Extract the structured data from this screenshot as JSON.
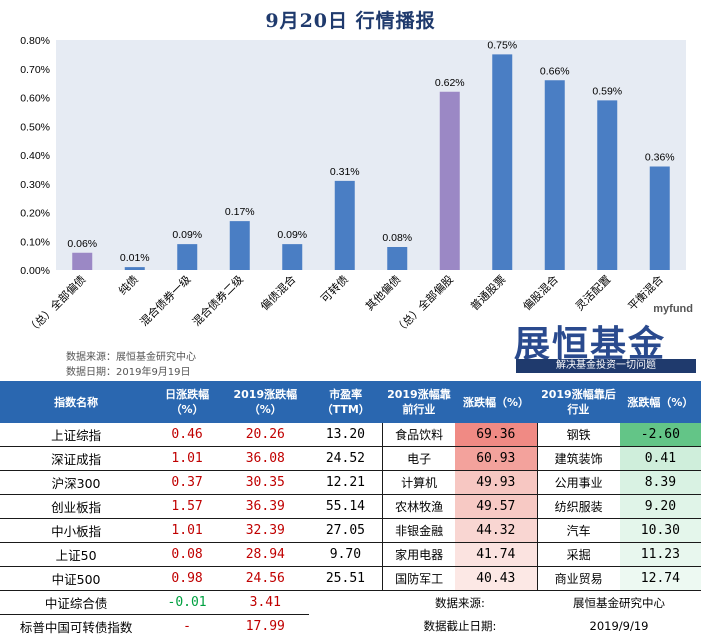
{
  "title": "9月20日  行情播报",
  "chart_data": {
    "type": "bar",
    "categories": [
      "（总）全部偏债",
      "纯债",
      "混合债券一级",
      "混合债券二级",
      "偏债混合",
      "可转债",
      "其他偏债",
      "（总）全部偏股",
      "普通股票",
      "偏股混合",
      "灵活配置",
      "平衡混合"
    ],
    "values": [
      0.06,
      0.01,
      0.09,
      0.17,
      0.09,
      0.31,
      0.08,
      0.62,
      0.75,
      0.66,
      0.59,
      0.36
    ],
    "data_labels": [
      "0.06%",
      "0.01%",
      "0.09%",
      "0.17%",
      "0.09%",
      "0.31%",
      "0.08%",
      "0.62%",
      "0.75%",
      "0.66%",
      "0.59%",
      "0.36%"
    ],
    "bar_colors": [
      "#9b88c5",
      "#4a7ec4",
      "#4a7ec4",
      "#4a7ec4",
      "#4a7ec4",
      "#4a7ec4",
      "#4a7ec4",
      "#9b88c5",
      "#4a7ec4",
      "#4a7ec4",
      "#4a7ec4",
      "#4a7ec4"
    ],
    "yticks": [
      "0.00%",
      "0.10%",
      "0.20%",
      "0.30%",
      "0.40%",
      "0.50%",
      "0.60%",
      "0.70%",
      "0.80%"
    ],
    "ylim": [
      0,
      0.8
    ],
    "grid": false
  },
  "source": {
    "line1": "数据来源：展恒基金研究中心",
    "line2": "数据日期：2019年9月19日"
  },
  "logo": {
    "en": "myfund",
    "cn": "展恒基金",
    "slogan": "解决基金投资一切问题"
  },
  "table": {
    "headers": [
      "指数名称",
      "日涨跌幅（%）",
      "2019涨跌幅（%）",
      "市盈率（TTM）",
      "2019涨幅靠前行业",
      "涨跌幅（%）",
      "2019涨幅靠后行业",
      "涨跌幅（%）"
    ],
    "rows": [
      {
        "name": "上证综指",
        "day": "0.46",
        "ytd": "20.26",
        "pe": "13.20",
        "top": "食品饮料",
        "top_chg": "69.36",
        "bot": "钢铁",
        "bot_chg": "-2.60"
      },
      {
        "name": "深证成指",
        "day": "1.01",
        "ytd": "36.08",
        "pe": "24.52",
        "top": "电子",
        "top_chg": "60.93",
        "bot": "建筑装饰",
        "bot_chg": "0.41"
      },
      {
        "name": "沪深300",
        "day": "0.37",
        "ytd": "30.35",
        "pe": "12.21",
        "top": "计算机",
        "top_chg": "49.93",
        "bot": "公用事业",
        "bot_chg": "8.39"
      },
      {
        "name": "创业板指",
        "day": "1.57",
        "ytd": "36.39",
        "pe": "55.14",
        "top": "农林牧渔",
        "top_chg": "49.57",
        "bot": "纺织服装",
        "bot_chg": "9.20"
      },
      {
        "name": "中小板指",
        "day": "1.01",
        "ytd": "32.39",
        "pe": "27.05",
        "top": "非银金融",
        "top_chg": "44.32",
        "bot": "汽车",
        "bot_chg": "10.30"
      },
      {
        "name": "上证50",
        "day": "0.08",
        "ytd": "28.94",
        "pe": "9.70",
        "top": "家用电器",
        "top_chg": "41.74",
        "bot": "采掘",
        "bot_chg": "11.23"
      },
      {
        "name": "中证500",
        "day": "0.98",
        "ytd": "24.56",
        "pe": "25.51",
        "top": "国防军工",
        "top_chg": "40.43",
        "bot": "商业贸易",
        "bot_chg": "12.74"
      }
    ],
    "extra_rows": [
      {
        "name": "中证综合债",
        "day": "-0.01",
        "ytd": "3.41",
        "label": "数据来源:",
        "value": "展恒基金研究中心"
      },
      {
        "name": "标普中国可转债指数",
        "day": "-",
        "ytd": "17.99",
        "label": "数据截止日期:",
        "value": "2019/9/19"
      }
    ],
    "top_heat": [
      "#f08a84",
      "#f3a29c",
      "#f7c7c2",
      "#f7c9c4",
      "#f9d6d2",
      "#fbe3e0",
      "#fce8e5"
    ],
    "bot_heat": [
      "#63c587",
      "#cfeedb",
      "#d9f2e3",
      "#e0f4e8",
      "#e4f6eb",
      "#e8f7ee",
      "#edf9f2"
    ],
    "colors": {
      "header": "#2a67b0",
      "up": "#c00000",
      "down": "#00a040"
    }
  }
}
